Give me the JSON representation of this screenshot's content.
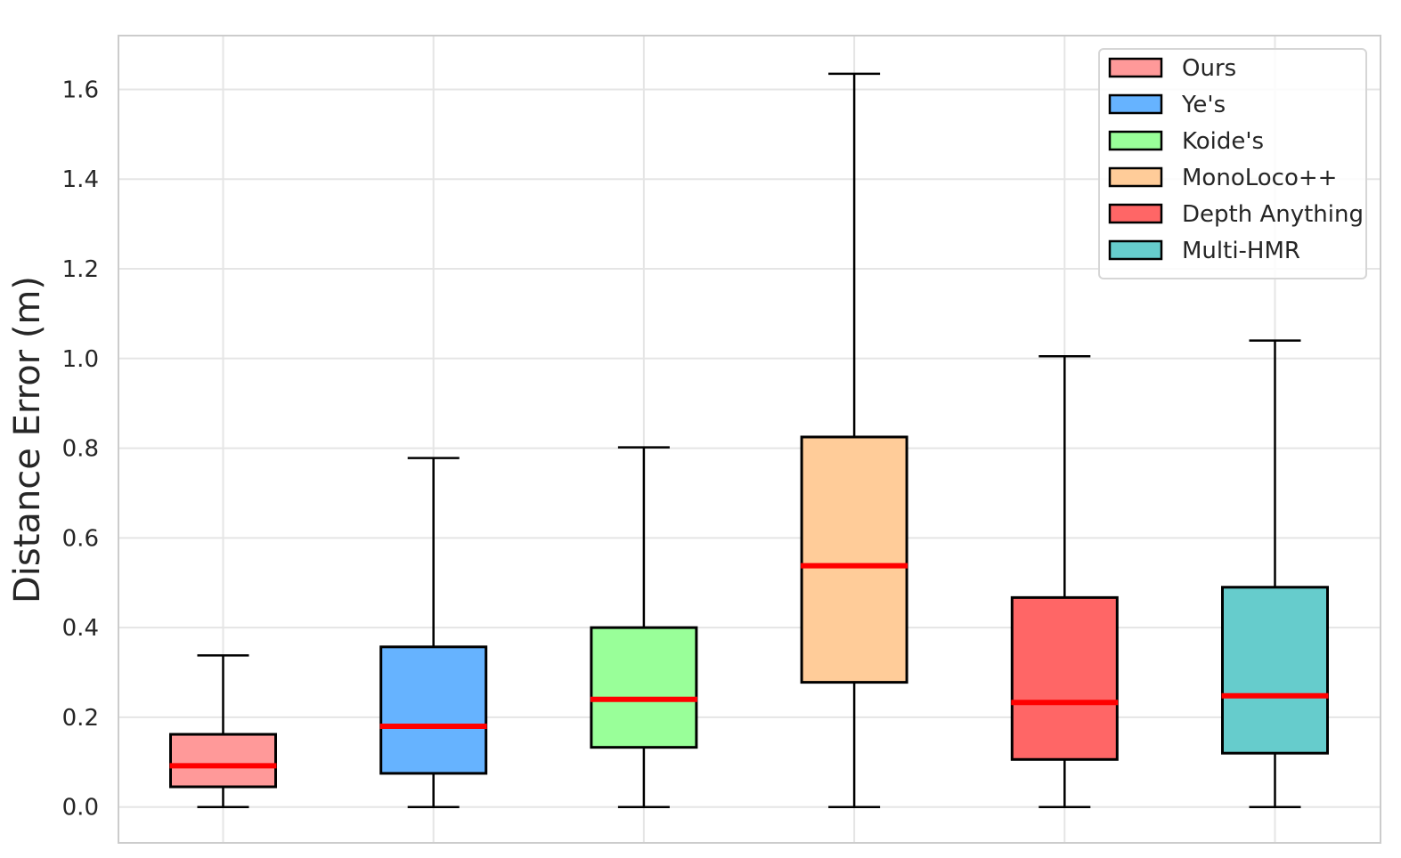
{
  "chart_data": {
    "type": "box",
    "ylabel": "Distance Error (m)",
    "xlabel": "",
    "ylim": [
      -0.08,
      1.72
    ],
    "yticks": [
      0.0,
      0.2,
      0.4,
      0.6,
      0.8,
      1.0,
      1.2,
      1.4,
      1.6
    ],
    "ytick_labels": [
      "0.0",
      "0.2",
      "0.4",
      "0.6",
      "0.8",
      "1.0",
      "1.2",
      "1.4",
      "1.6"
    ],
    "grid": true,
    "legend_position": "top-right",
    "median_color": "#ff0000",
    "series": [
      {
        "name": "Ours",
        "color": "#ff9999",
        "whisker_low": 0.0,
        "q1": 0.045,
        "median": 0.092,
        "q3": 0.162,
        "whisker_high": 0.338
      },
      {
        "name": "Ye's",
        "color": "#66b3ff",
        "whisker_low": 0.0,
        "q1": 0.075,
        "median": 0.18,
        "q3": 0.357,
        "whisker_high": 0.778
      },
      {
        "name": "Koide's",
        "color": "#99ff99",
        "whisker_low": 0.0,
        "q1": 0.133,
        "median": 0.24,
        "q3": 0.4,
        "whisker_high": 0.802
      },
      {
        "name": "MonoLoco++",
        "color": "#ffcc99",
        "whisker_low": 0.0,
        "q1": 0.278,
        "median": 0.538,
        "q3": 0.825,
        "whisker_high": 1.635
      },
      {
        "name": "Depth Anything",
        "color": "#ff6666",
        "whisker_low": 0.0,
        "q1": 0.106,
        "median": 0.233,
        "q3": 0.467,
        "whisker_high": 1.005
      },
      {
        "name": "Multi-HMR",
        "color": "#66cccc",
        "whisker_low": 0.0,
        "q1": 0.12,
        "median": 0.248,
        "q3": 0.49,
        "whisker_high": 1.04
      }
    ]
  }
}
